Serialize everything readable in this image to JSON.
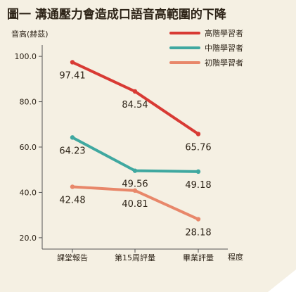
{
  "chart_data": {
    "type": "line",
    "title": "圖一 溝通壓力會造成口語音高範圍的下降",
    "ylabel": "音高(赫茲)",
    "xlabel": "程度",
    "categories": [
      "課堂報告",
      "第15周評量",
      "畢業評量"
    ],
    "ylim": [
      15,
      105
    ],
    "yticks": [
      "100.0",
      "80.0",
      "60.0",
      "40.0",
      "20.0"
    ],
    "legend_position": "top-right",
    "series": [
      {
        "name": "高階學習者",
        "color": "#d83a34",
        "values": [
          97.41,
          84.54,
          65.76
        ],
        "labels": [
          "97.41",
          "84.54",
          "65.76"
        ]
      },
      {
        "name": "中階學習者",
        "color": "#3fa8a0",
        "values": [
          64.23,
          49.56,
          49.18
        ],
        "labels": [
          "64.23",
          "49.56",
          "49.18"
        ]
      },
      {
        "name": "初階學習者",
        "color": "#e8876a",
        "values": [
          42.48,
          40.81,
          28.18
        ],
        "labels": [
          "42.48",
          "40.81",
          "28.18"
        ]
      }
    ]
  }
}
